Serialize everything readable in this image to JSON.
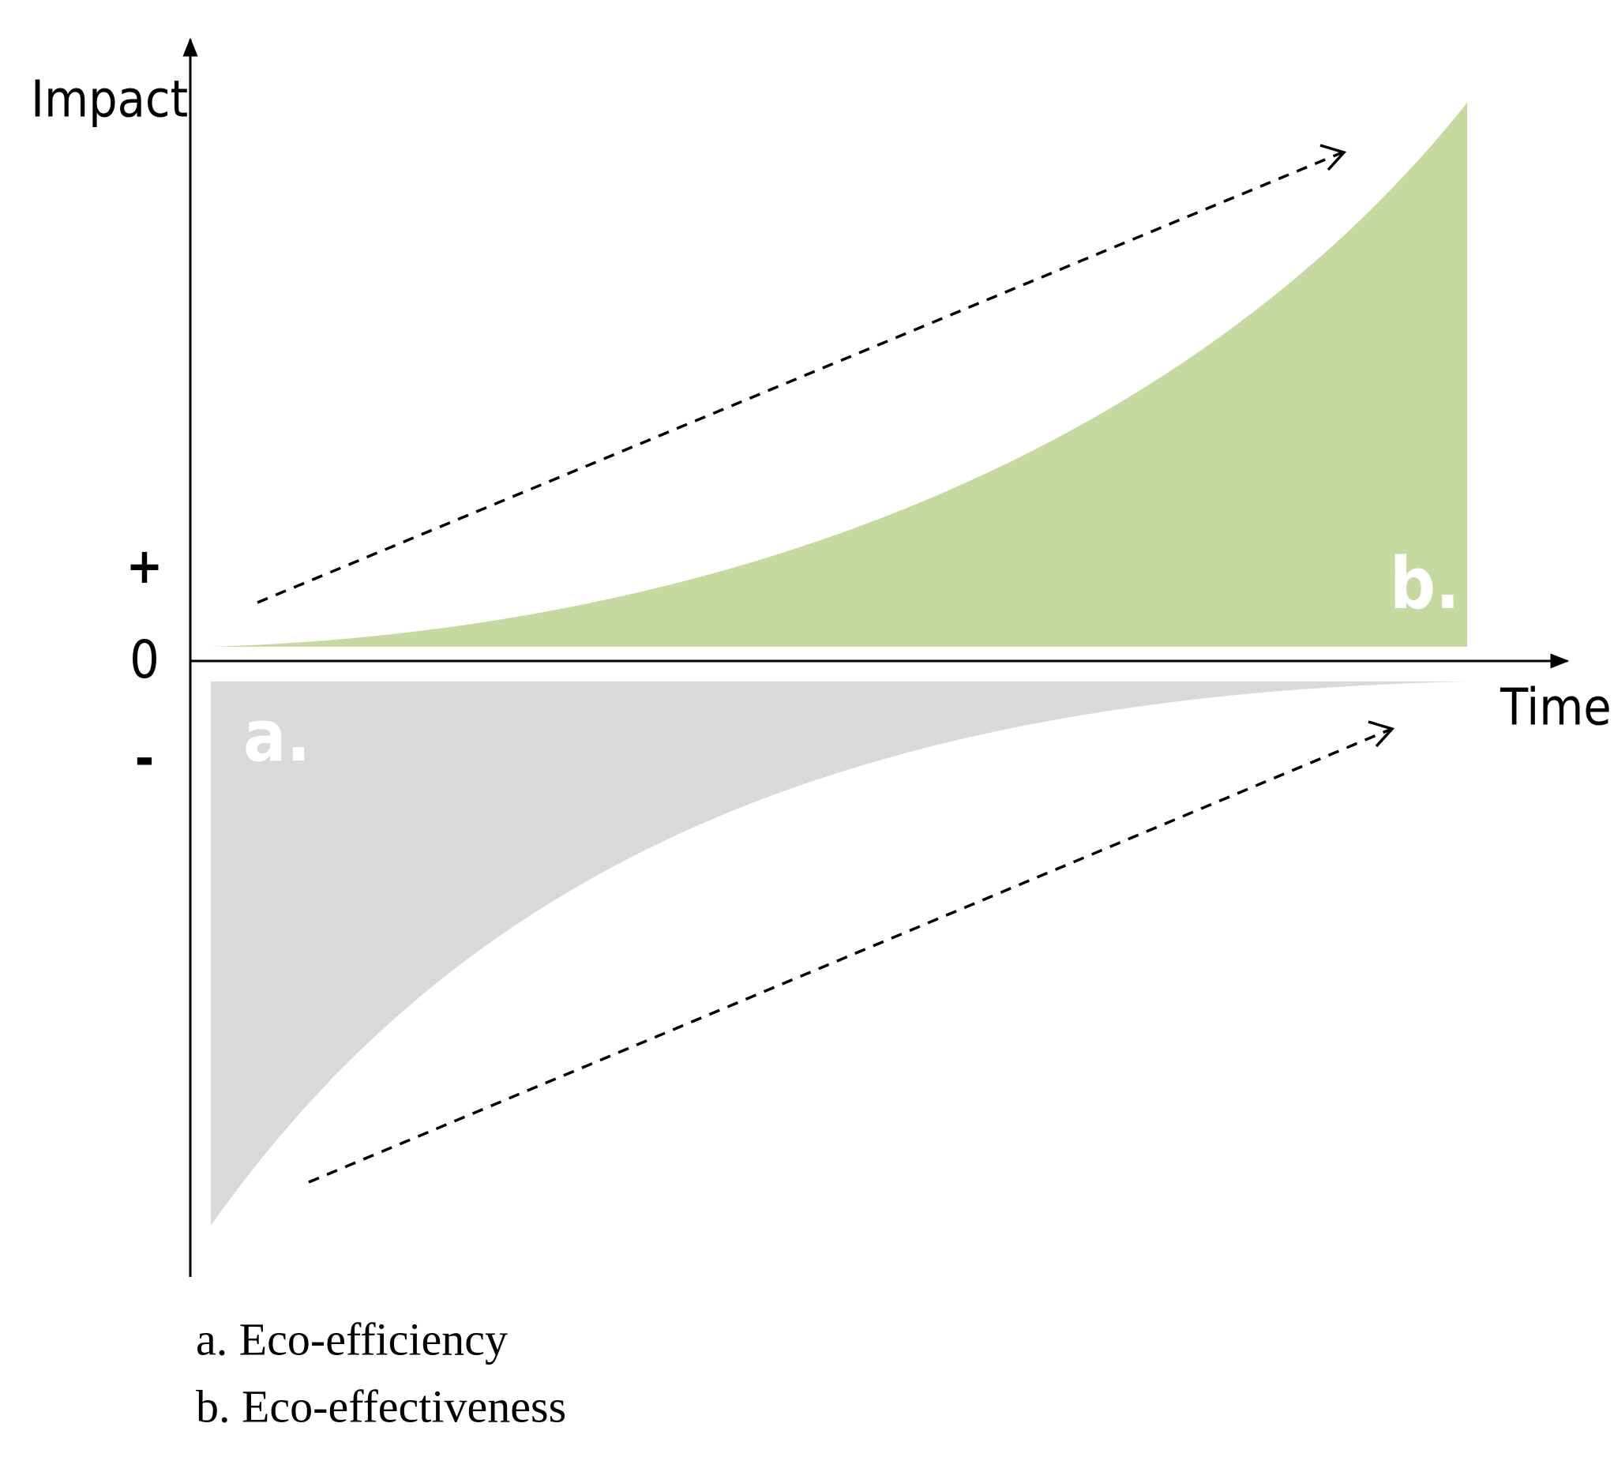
{
  "axes": {
    "y_label": "Impact",
    "x_label": "Time",
    "plus": "+",
    "zero": "0",
    "minus": "-"
  },
  "regions": [
    {
      "label": "a."
    },
    {
      "label": "b."
    }
  ],
  "legend": [
    "a. Eco-efficiency",
    "b. Eco-effectiveness"
  ]
}
